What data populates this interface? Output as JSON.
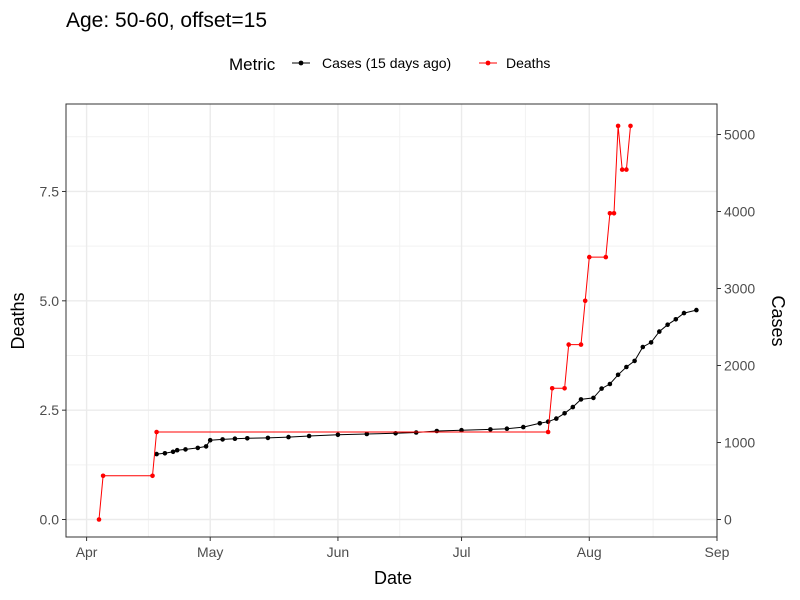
{
  "chart_data": {
    "type": "line",
    "title": "Age: 50-60, offset=15",
    "xlabel": "Date",
    "ylabel": "Deaths",
    "ylabel_right": "Cases",
    "legend": {
      "title": "Metric",
      "placement": "top",
      "entries": [
        "Cases (15 days ago)",
        "Deaths"
      ]
    },
    "x_ticks": [
      "Apr",
      "May",
      "Jun",
      "Jul",
      "Aug",
      "Sep"
    ],
    "x_tick_dates": [
      "2020-04-01",
      "2020-05-01",
      "2020-06-01",
      "2020-07-01",
      "2020-08-01",
      "2020-09-01"
    ],
    "xlim": [
      "2020-03-27",
      "2020-09-01"
    ],
    "y_ticks": [
      "0.0",
      "2.5",
      "5.0",
      "7.5"
    ],
    "y_tick_values": [
      0,
      2.5,
      5,
      7.5
    ],
    "ylim": [
      -0.4,
      9.5
    ],
    "y2_ticks": [
      "0",
      "1000",
      "2000",
      "3000",
      "4000",
      "5000"
    ],
    "y2_tick_values": [
      0,
      1000,
      2000,
      3000,
      4000,
      5000
    ],
    "y2lim": [
      -227,
      5396
    ],
    "grid": true,
    "colors": {
      "cases": "#000000",
      "deaths": "#ff0000"
    },
    "series": [
      {
        "name": "Cases (15 days ago)",
        "axis": "right",
        "points": [
          [
            "2020-04-18",
            850
          ],
          [
            "2020-04-20",
            860
          ],
          [
            "2020-04-22",
            880
          ],
          [
            "2020-04-23",
            900
          ],
          [
            "2020-04-25",
            910
          ],
          [
            "2020-04-28",
            930
          ],
          [
            "2020-04-30",
            950
          ],
          [
            "2020-05-01",
            1030
          ],
          [
            "2020-05-04",
            1040
          ],
          [
            "2020-05-07",
            1050
          ],
          [
            "2020-05-10",
            1055
          ],
          [
            "2020-05-15",
            1060
          ],
          [
            "2020-05-20",
            1070
          ],
          [
            "2020-05-25",
            1085
          ],
          [
            "2020-06-01",
            1100
          ],
          [
            "2020-06-08",
            1110
          ],
          [
            "2020-06-15",
            1120
          ],
          [
            "2020-06-20",
            1130
          ],
          [
            "2020-06-25",
            1150
          ],
          [
            "2020-07-01",
            1160
          ],
          [
            "2020-07-08",
            1170
          ],
          [
            "2020-07-12",
            1180
          ],
          [
            "2020-07-16",
            1200
          ],
          [
            "2020-07-20",
            1250
          ],
          [
            "2020-07-22",
            1270
          ],
          [
            "2020-07-24",
            1310
          ],
          [
            "2020-07-26",
            1380
          ],
          [
            "2020-07-28",
            1460
          ],
          [
            "2020-07-30",
            1560
          ],
          [
            "2020-08-02",
            1580
          ],
          [
            "2020-08-04",
            1700
          ],
          [
            "2020-08-06",
            1760
          ],
          [
            "2020-08-08",
            1880
          ],
          [
            "2020-08-10",
            1980
          ],
          [
            "2020-08-12",
            2060
          ],
          [
            "2020-08-14",
            2240
          ],
          [
            "2020-08-16",
            2300
          ],
          [
            "2020-08-18",
            2440
          ],
          [
            "2020-08-20",
            2530
          ],
          [
            "2020-08-22",
            2600
          ],
          [
            "2020-08-24",
            2680
          ],
          [
            "2020-08-27",
            2720
          ]
        ]
      },
      {
        "name": "Deaths",
        "axis": "left",
        "points": [
          [
            "2020-04-04",
            0
          ],
          [
            "2020-04-05",
            1
          ],
          [
            "2020-04-17",
            1
          ],
          [
            "2020-04-18",
            2
          ],
          [
            "2020-07-22",
            2
          ],
          [
            "2020-07-23",
            3
          ],
          [
            "2020-07-26",
            3
          ],
          [
            "2020-07-27",
            4
          ],
          [
            "2020-07-30",
            4
          ],
          [
            "2020-07-31",
            5
          ],
          [
            "2020-08-01",
            6
          ],
          [
            "2020-08-05",
            6
          ],
          [
            "2020-08-06",
            7
          ],
          [
            "2020-08-07",
            7
          ],
          [
            "2020-08-08",
            9
          ],
          [
            "2020-08-09",
            8
          ],
          [
            "2020-08-10",
            8
          ],
          [
            "2020-08-11",
            9
          ]
        ]
      }
    ]
  }
}
